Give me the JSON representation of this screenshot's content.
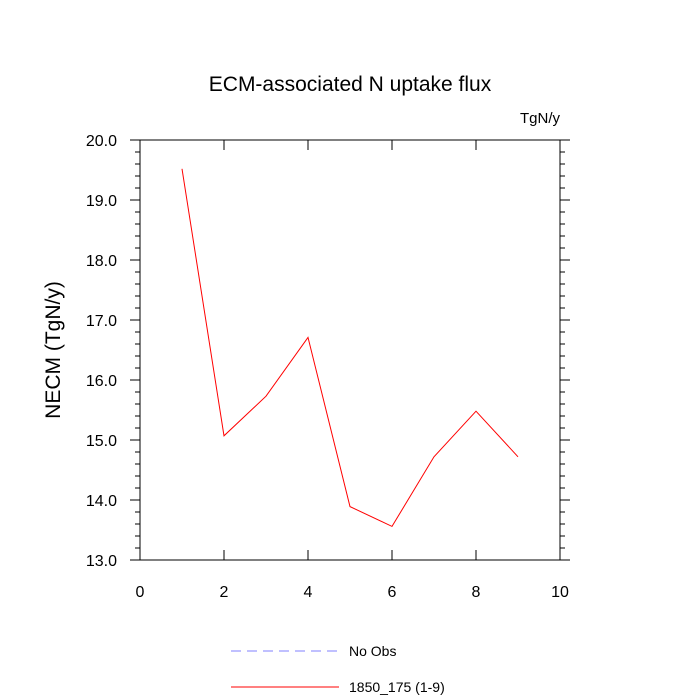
{
  "chart_data": {
    "type": "line",
    "title": "ECM-associated N uptake flux",
    "units_label": "TgN/y",
    "xlabel": "",
    "ylabel": "NECM  (TgN/y)",
    "xlim": [
      0,
      10
    ],
    "ylim": [
      13.0,
      20.0
    ],
    "x_ticks": [
      0,
      2,
      4,
      6,
      8,
      10
    ],
    "x_tick_labels": [
      "0",
      "2",
      "4",
      "6",
      "8",
      "10"
    ],
    "y_ticks": [
      13,
      14,
      15,
      16,
      17,
      18,
      19,
      20
    ],
    "y_tick_labels": [
      "13.0",
      "14.0",
      "15.0",
      "16.0",
      "17.0",
      "18.0",
      "19.0",
      "20.0"
    ],
    "grid": false,
    "legend_position": "bottom",
    "series": [
      {
        "name": "1850_175 (1-9)",
        "color": "#ff0000",
        "dash": "solid",
        "x": [
          1,
          2,
          3,
          4,
          5,
          6,
          7,
          8,
          9
        ],
        "y": [
          19.52,
          15.07,
          15.73,
          16.71,
          13.89,
          13.56,
          14.72,
          15.48,
          14.72
        ]
      }
    ],
    "legend": [
      {
        "label": "No Obs",
        "color": "#8080ff",
        "dash": "dashed"
      },
      {
        "label": "1850_175 (1-9)",
        "color": "#ff0000",
        "dash": "solid"
      }
    ]
  }
}
